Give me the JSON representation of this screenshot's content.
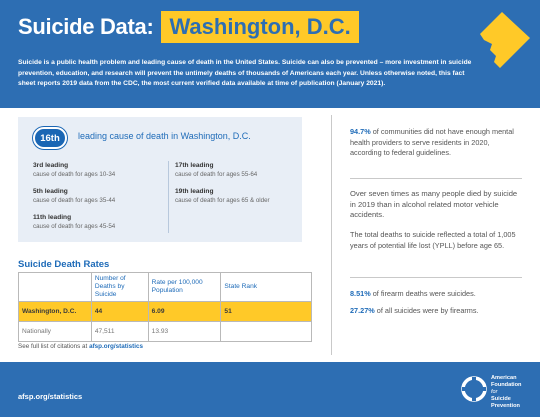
{
  "header": {
    "title": "Suicide Data:",
    "location": "Washington, D.C.",
    "intro": "Suicide is a public health problem and leading cause of death in the United States. Suicide can also be prevented – more investment in suicide prevention, education, and research will prevent the untimely deaths of thousands of Americans each year. Unless otherwise noted, this fact sheet reports 2019 data from the CDC, the most current verified data available at time of publication (January 2021).",
    "map_icon": "dc-map-icon"
  },
  "ranking": {
    "badge": "16th",
    "headline": "leading cause of death in Washington, D.C.",
    "items": [
      {
        "label": "3rd leading",
        "desc": "cause of death for ages 10-34"
      },
      {
        "label": "5th leading",
        "desc": "cause of death for ages 35-44"
      },
      {
        "label": "11th leading",
        "desc": "cause of death for ages 45-54"
      },
      {
        "label": "17th leading",
        "desc": "cause of death for ages 55-64"
      },
      {
        "label": "19th leading",
        "desc": "cause of death for ages 65 & older"
      }
    ]
  },
  "rates_table": {
    "title": "Suicide Death Rates",
    "headers": [
      "",
      "Number of Deaths by Suicide",
      "Rate per 100,000 Population",
      "State Rank"
    ],
    "rows": [
      {
        "name": "Washington, D.C.",
        "deaths": "44",
        "rate": "6.09",
        "rank": "51"
      },
      {
        "name": "Nationally",
        "deaths": "47,511",
        "rate": "13.93",
        "rank": ""
      }
    ]
  },
  "citation": {
    "text": "See full list of citations at",
    "link": "afsp.org/statistics"
  },
  "facts": {
    "f1_strong": "94.7%",
    "f1_rest": " of communities did not have enough mental health providers to serve residents in 2020, according to federal guidelines.",
    "f2": "Over seven times as many people died by suicide in 2019 than in alcohol related motor vehicle accidents.",
    "f3": "The total deaths to suicide reflected a total of 1,005 years of potential life lost (YPLL) before age 65.",
    "f4_strong": "8.51%",
    "f4_rest": " of firearm deaths were suicides.",
    "f5_strong": "27.27%",
    "f5_rest": " of all suicides were by firearms."
  },
  "footer": {
    "url": "afsp.org/statistics",
    "org_line1": "American",
    "org_line2": "Foundation",
    "org_line3": "for",
    "org_line4": "Suicide",
    "org_line5": "Prevention",
    "logo_icon": "afsp-logo-icon"
  },
  "colors": {
    "brand_blue": "#2d6eb3",
    "accent_yellow": "#ffc928",
    "panel_blue": "#e8eef6"
  }
}
